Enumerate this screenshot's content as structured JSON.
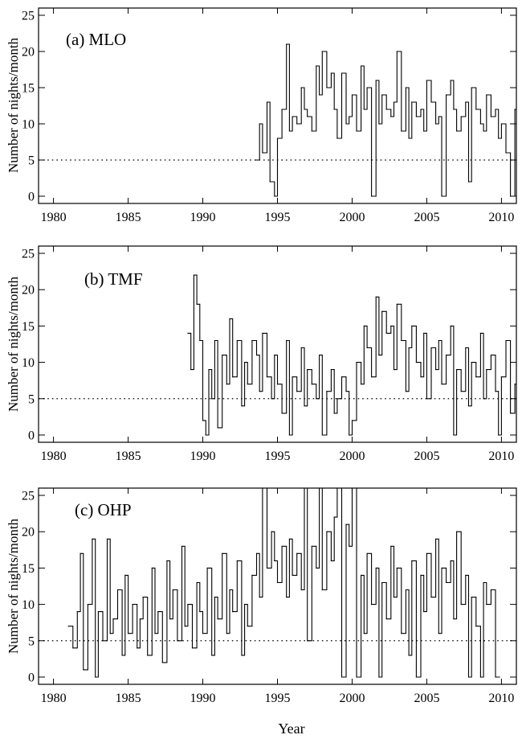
{
  "figure": {
    "xlabel": "Year",
    "ylabel": "Number of nights/month",
    "reference_line": 5
  },
  "chart_data": [
    {
      "type": "line",
      "title": "(a) MLO",
      "xlabel": "Year",
      "ylabel": "Number of nights/month",
      "xlim": [
        1979,
        2011
      ],
      "ylim": [
        -1,
        26
      ],
      "xticks": [
        1980,
        1985,
        1990,
        1995,
        2000,
        2005,
        2010
      ],
      "yticks": [
        0,
        5,
        10,
        15,
        20,
        25
      ],
      "series": [
        {
          "x": [
            1993.5,
            1993.8,
            1994.0,
            1994.3,
            1994.5,
            1994.8,
            1995.0,
            1995.3,
            1995.6,
            1995.8,
            1996.0,
            1996.3,
            1996.6,
            1996.8,
            1997.0,
            1997.3,
            1997.6,
            1997.8,
            1998.0,
            1998.3,
            1998.6,
            1998.8,
            1999.0,
            1999.3,
            1999.6,
            1999.8,
            2000.0,
            2000.3,
            2000.6,
            2000.8,
            2001.0,
            2001.3,
            2001.6,
            2001.8,
            2002.0,
            2002.3,
            2002.6,
            2002.8,
            2003.0,
            2003.3,
            2003.6,
            2003.8,
            2004.0,
            2004.3,
            2004.6,
            2004.8,
            2005.0,
            2005.3,
            2005.6,
            2005.8,
            2006.0,
            2006.3,
            2006.6,
            2006.8,
            2007.0,
            2007.3,
            2007.6,
            2007.8,
            2008.0,
            2008.3,
            2008.6,
            2008.8,
            2009.0,
            2009.3,
            2009.6,
            2009.8,
            2010.0,
            2010.3,
            2010.6,
            2010.9
          ],
          "y": [
            5,
            10,
            6,
            13,
            2,
            0,
            8,
            12,
            21,
            9,
            11,
            10,
            15,
            12,
            11,
            9,
            18,
            14,
            20,
            15,
            17,
            12,
            8,
            17,
            10,
            11,
            14,
            9,
            18,
            12,
            15,
            0,
            16,
            10,
            14,
            12,
            11,
            13,
            20,
            9,
            15,
            8,
            13,
            11,
            12,
            9,
            16,
            13,
            10,
            11,
            0,
            14,
            16,
            12,
            9,
            11,
            13,
            2,
            15,
            12,
            10,
            9,
            14,
            11,
            12,
            8,
            10,
            6,
            0,
            12
          ]
        }
      ]
    },
    {
      "type": "line",
      "title": "(b) TMF",
      "xlabel": "Year",
      "ylabel": "Number of nights/month",
      "xlim": [
        1979,
        2011
      ],
      "ylim": [
        -1,
        26
      ],
      "xticks": [
        1980,
        1985,
        1990,
        1995,
        2000,
        2005,
        2010
      ],
      "yticks": [
        0,
        5,
        10,
        15,
        20,
        25
      ],
      "series": [
        {
          "x": [
            1989.0,
            1989.2,
            1989.4,
            1989.6,
            1989.8,
            1990.0,
            1990.2,
            1990.4,
            1990.6,
            1990.8,
            1991.0,
            1991.3,
            1991.6,
            1991.8,
            1992.0,
            1992.3,
            1992.6,
            1992.8,
            1993.0,
            1993.3,
            1993.6,
            1993.8,
            1994.0,
            1994.3,
            1994.6,
            1994.8,
            1995.0,
            1995.3,
            1995.6,
            1995.8,
            1996.0,
            1996.3,
            1996.6,
            1996.8,
            1997.0,
            1997.3,
            1997.6,
            1997.8,
            1998.0,
            1998.3,
            1998.6,
            1998.8,
            1999.0,
            1999.3,
            1999.6,
            1999.8,
            2000.0,
            2000.3,
            2000.6,
            2000.8,
            2001.0,
            2001.3,
            2001.6,
            2001.8,
            2002.0,
            2002.3,
            2002.6,
            2002.8,
            2003.0,
            2003.3,
            2003.6,
            2003.8,
            2004.0,
            2004.3,
            2004.6,
            2004.8,
            2005.0,
            2005.3,
            2005.6,
            2005.8,
            2006.0,
            2006.3,
            2006.6,
            2006.8,
            2007.0,
            2007.3,
            2007.6,
            2007.8,
            2008.0,
            2008.3,
            2008.6,
            2008.8,
            2009.0,
            2009.3,
            2009.6,
            2009.8,
            2010.0,
            2010.3,
            2010.6,
            2010.9
          ],
          "y": [
            14,
            9,
            22,
            18,
            13,
            2,
            0,
            9,
            5,
            13,
            1,
            11,
            7,
            16,
            8,
            13,
            4,
            10,
            7,
            13,
            11,
            6,
            14,
            8,
            5,
            11,
            7,
            3,
            13,
            0,
            8,
            6,
            12,
            4,
            9,
            7,
            5,
            11,
            0,
            6,
            9,
            3,
            5,
            8,
            6,
            0,
            2,
            10,
            7,
            15,
            12,
            8,
            19,
            11,
            17,
            14,
            15,
            9,
            18,
            13,
            6,
            12,
            15,
            10,
            8,
            14,
            5,
            12,
            9,
            13,
            7,
            11,
            15,
            0,
            9,
            6,
            12,
            4,
            10,
            8,
            14,
            5,
            9,
            11,
            6,
            0,
            8,
            13,
            3,
            7
          ]
        }
      ]
    },
    {
      "type": "line",
      "title": "(c) OHP",
      "xlabel": "Year",
      "ylabel": "Number of nights/month",
      "xlim": [
        1979,
        2011
      ],
      "ylim": [
        -1,
        26
      ],
      "xticks": [
        1980,
        1985,
        1990,
        1995,
        2000,
        2005,
        2010
      ],
      "yticks": [
        0,
        5,
        10,
        15,
        20,
        25
      ],
      "series": [
        {
          "x": [
            1981.0,
            1981.3,
            1981.6,
            1981.8,
            1982.0,
            1982.3,
            1982.6,
            1982.8,
            1983.0,
            1983.3,
            1983.6,
            1983.8,
            1984.0,
            1984.3,
            1984.6,
            1984.8,
            1985.0,
            1985.3,
            1985.6,
            1985.8,
            1986.0,
            1986.3,
            1986.6,
            1986.8,
            1987.0,
            1987.3,
            1987.6,
            1987.8,
            1988.0,
            1988.3,
            1988.6,
            1988.8,
            1989.0,
            1989.3,
            1989.6,
            1989.8,
            1990.0,
            1990.3,
            1990.6,
            1990.8,
            1991.0,
            1991.3,
            1991.6,
            1991.8,
            1992.0,
            1992.3,
            1992.6,
            1992.8,
            1993.0,
            1993.3,
            1993.6,
            1993.8,
            1994.0,
            1994.3,
            1994.6,
            1994.8,
            1995.0,
            1995.3,
            1995.6,
            1995.8,
            1996.0,
            1996.3,
            1996.6,
            1996.8,
            1997.0,
            1997.3,
            1997.6,
            1997.8,
            1998.0,
            1998.3,
            1998.6,
            1998.8,
            1999.0,
            1999.3,
            1999.6,
            1999.8,
            2000.0,
            2000.3,
            2000.6,
            2000.8,
            2001.0,
            2001.3,
            2001.6,
            2001.8,
            2002.0,
            2002.3,
            2002.6,
            2002.8,
            2003.0,
            2003.3,
            2003.6,
            2003.8,
            2004.0,
            2004.3,
            2004.6,
            2004.8,
            2005.0,
            2005.3,
            2005.6,
            2005.8,
            2006.0,
            2006.3,
            2006.6,
            2006.8,
            2007.0,
            2007.3,
            2007.6,
            2007.8,
            2008.0,
            2008.3,
            2008.6,
            2008.8,
            2009.0,
            2009.3,
            2009.6
          ],
          "y": [
            7,
            4,
            9,
            17,
            1,
            10,
            19,
            0,
            9,
            5,
            19,
            6,
            8,
            12,
            3,
            14,
            6,
            10,
            4,
            8,
            11,
            3,
            15,
            6,
            9,
            2,
            16,
            8,
            12,
            5,
            18,
            7,
            10,
            4,
            13,
            9,
            6,
            15,
            3,
            11,
            8,
            17,
            6,
            12,
            9,
            16,
            3,
            10,
            7,
            14,
            17,
            11,
            26,
            15,
            20,
            16,
            13,
            18,
            11,
            19,
            14,
            17,
            12,
            26,
            5,
            18,
            15,
            26,
            12,
            20,
            16,
            22,
            26,
            0,
            21,
            18,
            26,
            0,
            14,
            6,
            17,
            10,
            15,
            0,
            13,
            8,
            18,
            11,
            15,
            6,
            12,
            3,
            16,
            0,
            14,
            9,
            17,
            11,
            19,
            6,
            15,
            13,
            16,
            8,
            20,
            10,
            14,
            0,
            11,
            7,
            0,
            13,
            10,
            12,
            0
          ]
        }
      ]
    }
  ]
}
